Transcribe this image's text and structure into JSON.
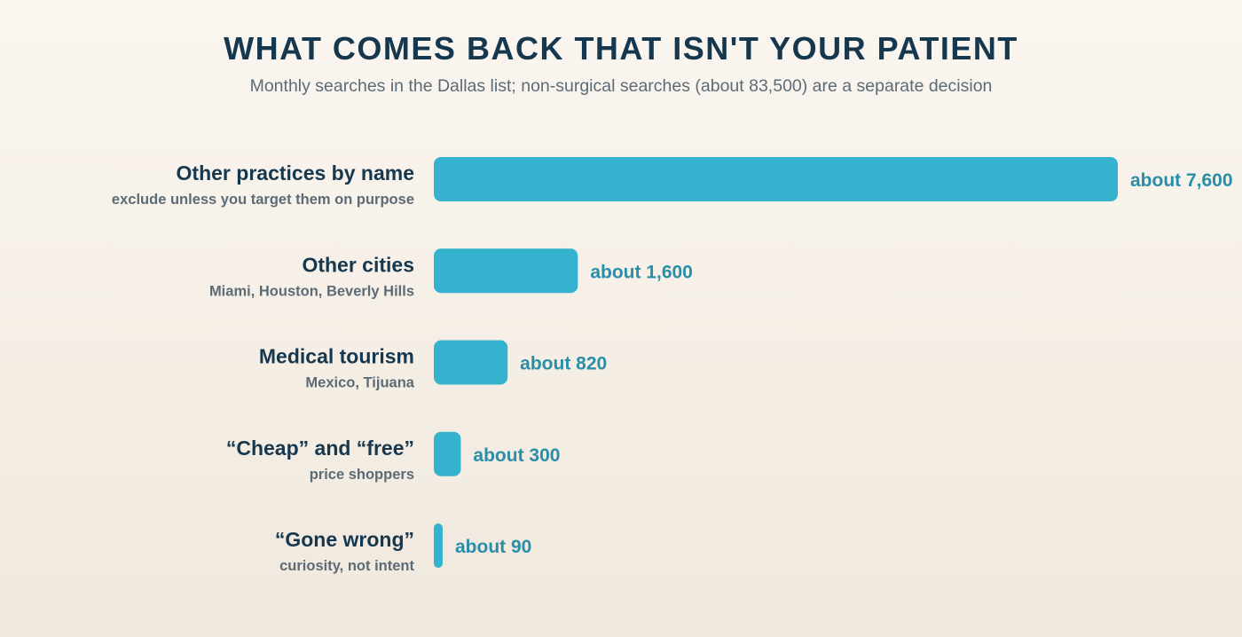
{
  "chart_data": {
    "type": "bar",
    "orientation": "horizontal",
    "title": "WHAT COMES BACK THAT ISN'T YOUR PATIENT",
    "subtitle": "Monthly searches in the Dallas list; non-surgical searches (about 83,500) are a separate decision",
    "categories": [
      "Other practices by name",
      "Other cities",
      "Medical tourism",
      "“Cheap” and “free”",
      "“Gone wrong”"
    ],
    "descriptions": [
      "exclude unless you target them on purpose",
      "Miami, Houston, Beverly Hills",
      "Mexico, Tijuana",
      "price shoppers",
      "curiosity, not intent"
    ],
    "values": [
      7600,
      1600,
      820,
      300,
      90
    ],
    "value_labels": [
      "about 7,600",
      "about 1,600",
      "about 820",
      "about 300",
      "about 90"
    ],
    "xlim": [
      0,
      7600
    ],
    "grid": false,
    "legend": "none",
    "colors": {
      "bar": "#35b2cd",
      "value_text": "#2a8ea8",
      "label_text": "#16384f",
      "sub_text": "#5c6b76"
    }
  }
}
